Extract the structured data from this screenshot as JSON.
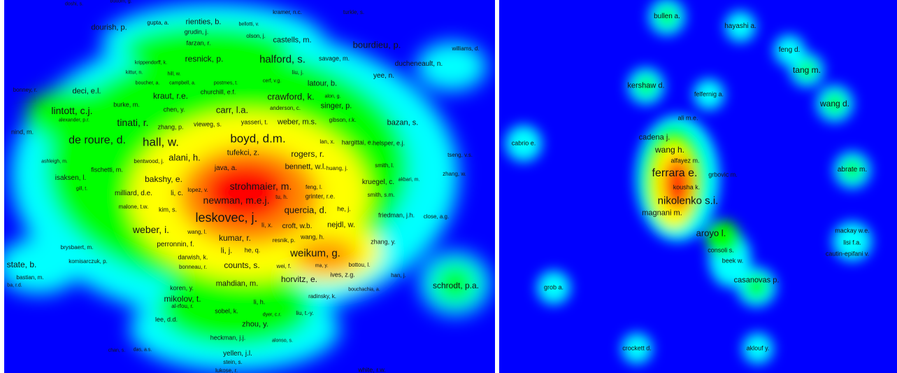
{
  "colors": {
    "background": "#0000ff",
    "ramp": [
      "#0000ff",
      "#00ffff",
      "#00ff00",
      "#ffff00",
      "#ff0000"
    ],
    "label": "#141414"
  },
  "left_map": {
    "labels": [
      "doshi, s.",
      "buttom, g.",
      "kramer, n.c.",
      "turkle, s.",
      "dourish, p.",
      "gupta, a.",
      "rienties, b.",
      "bellotti, v.",
      "grudin, j.",
      "olson, j.",
      "castells, m.",
      "farzan, r.",
      "bourdieu, p.",
      "williams, d.",
      "resnick, p.",
      "halford, s.",
      "savage, m.",
      "krippendorff, k.",
      "ducheneault, n.",
      "kittur, n.",
      "hill, w.",
      "liu, j.",
      "yee, n.",
      "boucher, a.",
      "campbell, a.",
      "postmes, t.",
      "cerf, v.g.",
      "latour, b.",
      "bonney, r.",
      "deci, e.l.",
      "kraut, r.e.",
      "churchill, e.f.",
      "crawford, k.",
      "alon, g.",
      "burke, m.",
      "singer, p.",
      "lintott, c.j.",
      "chen, y.",
      "carr, l.a.",
      "anderson, c.",
      "alexander, p.r.",
      "tinati, r.",
      "zhang, p.",
      "vieweg, s.",
      "yasseri, t.",
      "weber, m.s.",
      "gibson, r.k.",
      "bazan, s.",
      "nind, m.",
      "de roure, d.",
      "hall, w.",
      "boyd, d.m.",
      "lan, x.",
      "hargittai, e.",
      "helsper, e.j.",
      "tufekci, z.",
      "rogers, r.",
      "tseng, v.s.",
      "alani, h.",
      "ashleigh, m.",
      "bentwood, j.",
      "bennett, w.l.",
      "java, a.",
      "huang, j.",
      "smith, l.",
      "fischetti, m.",
      "zhang, w.",
      "isaksen, l.",
      "bakshy, e.",
      "kruegel, c.",
      "akbari, m.",
      "strohmaier, m.",
      "feng, l.",
      "gill, t.",
      "milliard, d.e.",
      "li, c.",
      "lopez, v.",
      "newman, m.e.j.",
      "tu, h.",
      "grinter, r.e.",
      "smith, s.m.",
      "malone, t.w.",
      "kim, s.",
      "quercia, d.",
      "he, j.",
      "friedman, j.h.",
      "close, a.g.",
      "leskovec, j.",
      "li, x.",
      "croft, w.b.",
      "nejdl, w.",
      "weber, i.",
      "wang, l.",
      "kumar, r.",
      "resnik, p.",
      "wang, h.",
      "zhang, y.",
      "perronnin, f.",
      "brysbaert, m.",
      "li, j.",
      "he, q.",
      "weikum, g.",
      "darwish, k.",
      "komisarczuk, p.",
      "state, b.",
      "counts, s.",
      "bonneau, r.",
      "wei, f.",
      "ma, y.",
      "bottou, l.",
      "bastian, m.",
      "ives, z.g.",
      "han, j.",
      "horvitz, e.",
      "ba, r.d.",
      "mahdian, m.",
      "schrodt, p.a.",
      "koren, y.",
      "bouchachia, a.",
      "mikolov, t.",
      "radinsky, k.",
      "li, h.",
      "al-rfou, r.",
      "sobel, k.",
      "dyer, c.r.",
      "liu, t.-y.",
      "lee, d.d.",
      "zhou, y.",
      "heckman, j.j.",
      "alonso, s.",
      "chan, s.",
      "das, a.s.",
      "yellen, j.l.",
      "stein, s.",
      "lukose, r.",
      "white, r.w."
    ]
  },
  "right_map": {
    "labels": [
      "bullen a.",
      "hayashi a.",
      "feng d.",
      "tang m.",
      "kershaw d.",
      "felfernig a.",
      "wang d.",
      "ali m.e.",
      "cadena j.",
      "cabrio e.",
      "wang h.",
      "alfayez m.",
      "ferrara e.",
      "grbovic m.",
      "abrate m.",
      "kousha k.",
      "nikolenko s.i.",
      "magnani m.",
      "aroyo l.",
      "mackay w.e.",
      "lisi f.a.",
      "consoli s.",
      "cautin-epifani v.",
      "beek w.",
      "casanovas p.",
      "grob a.",
      "crockett d.",
      "aklouf y."
    ]
  }
}
